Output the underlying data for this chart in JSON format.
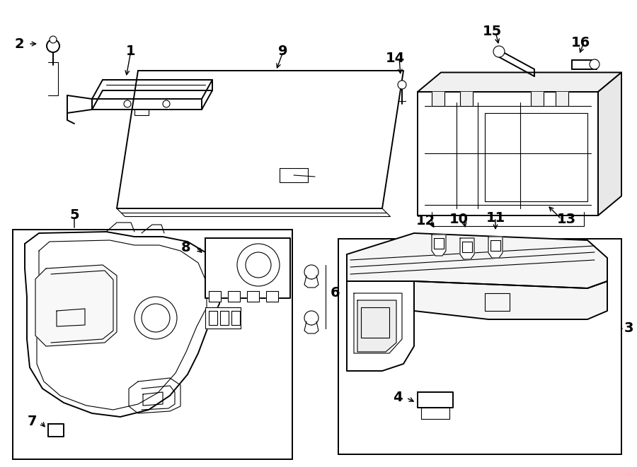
{
  "bg_color": "#ffffff",
  "line_color": "#000000",
  "lw_main": 1.4,
  "lw_thin": 0.8,
  "lw_thick": 1.8,
  "label_fontsize": 14,
  "fig_width": 9.0,
  "fig_height": 6.61,
  "dpi": 100
}
